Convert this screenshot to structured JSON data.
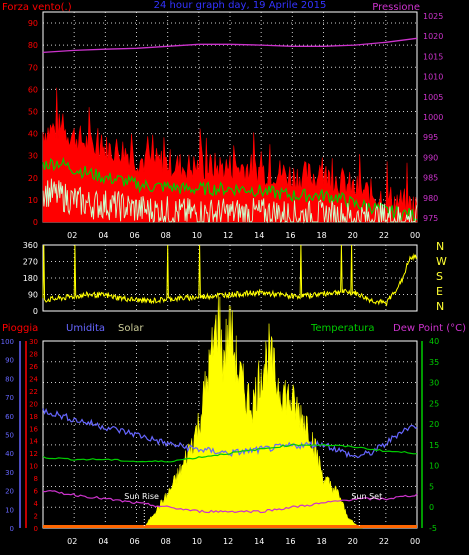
{
  "colors": {
    "background": "#000000",
    "grid": "#ffffff",
    "wind_red": "#ff0000",
    "wind_green": "#00cc00",
    "wind_light": "#ccffcc",
    "pressure": "#cc33cc",
    "direction": "#ffff00",
    "direction_label": "#ffff33",
    "solar": "#ffff00",
    "humidity": "#6666ff",
    "temperature": "#00cc00",
    "dewpoint": "#cc33cc",
    "rain": "#ff0000",
    "rain_bar": "#ff6600"
  },
  "chart_data": [
    {
      "type": "line",
      "title": "24 hour graph day, 19 Aprile 2015",
      "left_label": "Forza vento(.)",
      "right_label": "Pressione",
      "x_ticks": [
        "02",
        "04",
        "06",
        "08",
        "10",
        "12",
        "14",
        "16",
        "18",
        "20",
        "22",
        "00"
      ],
      "y_left_ticks": [
        "0",
        "10",
        "20",
        "30",
        "40",
        "50",
        "60",
        "70",
        "80",
        "90"
      ],
      "y_left_range": [
        0,
        95
      ],
      "y_right_ticks": [
        "975",
        "980",
        "985",
        "990",
        "995",
        "1000",
        "1005",
        "1010",
        "1015",
        "1020",
        "1025"
      ],
      "y_right_range": [
        974,
        1026
      ],
      "series": [
        {
          "name": "Forza vento",
          "role": "gust",
          "x": [
            0,
            1,
            2,
            3,
            4,
            5,
            6,
            7,
            8,
            9,
            10,
            11,
            12,
            13,
            14,
            15,
            16,
            17,
            18,
            19,
            20,
            21,
            22,
            23,
            24
          ],
          "values": [
            38,
            40,
            36,
            32,
            30,
            30,
            26,
            24,
            24,
            22,
            22,
            22,
            22,
            22,
            20,
            20,
            18,
            18,
            18,
            16,
            12,
            10,
            8,
            6,
            4
          ]
        },
        {
          "role": "average",
          "x": [
            0,
            1,
            2,
            3,
            4,
            5,
            6,
            7,
            8,
            9,
            10,
            11,
            12,
            13,
            14,
            15,
            16,
            17,
            18,
            19,
            20,
            21,
            22,
            23,
            24
          ],
          "values": [
            26,
            27,
            24,
            22,
            20,
            19,
            17,
            16,
            16,
            15,
            15,
            15,
            15,
            15,
            14,
            13,
            12,
            12,
            12,
            11,
            8,
            7,
            5,
            4,
            3
          ]
        },
        {
          "role": "low",
          "x": [
            0,
            1,
            2,
            3,
            4,
            5,
            6,
            7,
            8,
            9,
            10,
            11,
            12,
            13,
            14,
            15,
            16,
            17,
            18,
            19,
            20,
            21,
            22,
            23,
            24
          ],
          "values": [
            14,
            12,
            10,
            8,
            8,
            7,
            6,
            5,
            5,
            4,
            4,
            4,
            4,
            4,
            4,
            4,
            3,
            3,
            3,
            3,
            2,
            2,
            2,
            1,
            1
          ]
        },
        {
          "name": "Pressione",
          "x": [
            0,
            2,
            4,
            6,
            8,
            10,
            12,
            14,
            16,
            18,
            20,
            22,
            24
          ],
          "values": [
            1016.0,
            1016.5,
            1016.8,
            1017.0,
            1017.5,
            1018.0,
            1018.0,
            1017.8,
            1017.5,
            1017.5,
            1017.8,
            1018.5,
            1019.5
          ]
        }
      ]
    },
    {
      "type": "line",
      "left_ticks": [
        "0",
        "90",
        "180",
        "270",
        "360"
      ],
      "y_range": [
        0,
        360
      ],
      "direction_labels": [
        "N",
        "W",
        "S",
        "E",
        "N"
      ],
      "series": [
        {
          "x": [
            0,
            1,
            2,
            3,
            4,
            5,
            6,
            7,
            8,
            9,
            10,
            11,
            12,
            13,
            14,
            15,
            16,
            17,
            18,
            19,
            20,
            21,
            22,
            23,
            23.5,
            24
          ],
          "values": [
            60,
            68,
            80,
            90,
            85,
            70,
            60,
            55,
            65,
            70,
            75,
            85,
            90,
            95,
            100,
            90,
            80,
            85,
            95,
            105,
            100,
            60,
            40,
            160,
            280,
            300
          ]
        }
      ]
    },
    {
      "type": "area",
      "legend": [
        "Pioggia",
        "Umidita",
        "Solar",
        "Temperatura",
        "Dew Point (°C)"
      ],
      "left_ticks_rain": [
        "0",
        "2",
        "4",
        "6",
        "8",
        "10",
        "12",
        "14",
        "16",
        "18",
        "20",
        "22",
        "24",
        "26",
        "28",
        "30"
      ],
      "left_ticks_hum": [
        "0",
        "10",
        "20",
        "30",
        "40",
        "50",
        "60",
        "70",
        "80",
        "90",
        "100"
      ],
      "right_ticks_temp": [
        "-5",
        "0",
        "5",
        "10",
        "15",
        "20",
        "25",
        "30",
        "35",
        "40"
      ],
      "temp_range": [
        -5,
        40
      ],
      "hum_range": [
        0,
        100
      ],
      "annotations": [
        "Sun Rise",
        "Sun Set"
      ],
      "series": [
        {
          "name": "Umidita",
          "x": [
            0,
            2,
            4,
            6,
            8,
            10,
            12,
            14,
            16,
            18,
            20,
            21,
            22,
            23,
            24
          ],
          "values": [
            63,
            58,
            54,
            50,
            45,
            42,
            40,
            42,
            44,
            45,
            38,
            40,
            45,
            52,
            55
          ]
        },
        {
          "name": "Temperatura",
          "x": [
            0,
            2,
            4,
            6,
            8,
            10,
            12,
            14,
            16,
            18,
            20,
            22,
            24
          ],
          "values": [
            12,
            11.5,
            11.5,
            11,
            11,
            12,
            13,
            14,
            15,
            15,
            14.5,
            13.5,
            13
          ]
        },
        {
          "name": "Dew Point",
          "x": [
            0,
            2,
            4,
            6,
            8,
            10,
            12,
            14,
            16,
            18,
            20,
            22,
            24
          ],
          "values": [
            4,
            3,
            2,
            1,
            0,
            -1,
            -1,
            -1,
            0,
            1,
            2,
            2,
            3
          ]
        },
        {
          "name": "Solar",
          "x": [
            6.5,
            7,
            8,
            9,
            10,
            10.5,
            11,
            11.3,
            11.5,
            12,
            12.5,
            13,
            13.5,
            14,
            14.5,
            15,
            16,
            17,
            18,
            19,
            19.5,
            20,
            20.5
          ],
          "values": [
            0,
            3,
            8,
            15,
            25,
            35,
            45,
            52,
            40,
            48,
            38,
            32,
            30,
            38,
            42,
            35,
            30,
            25,
            12,
            8,
            3,
            1,
            0
          ]
        },
        {
          "name": "Pioggia",
          "x": [
            0,
            24
          ],
          "values": [
            0,
            0
          ]
        }
      ]
    }
  ]
}
